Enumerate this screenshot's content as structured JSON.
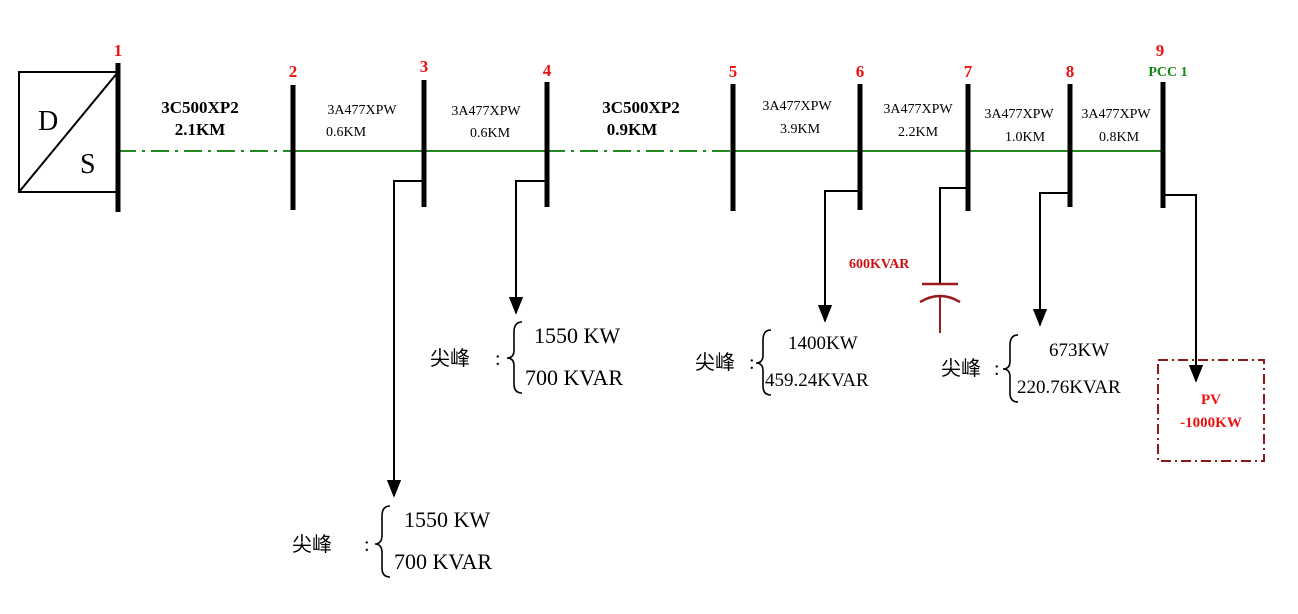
{
  "colors": {
    "bus_label": "#ee1111",
    "pcc_label": "#118811",
    "feeder_overhead": "#228822",
    "capacitor": "#9b1b1b",
    "pv_box": "#8b1a1a",
    "pv_text": "#ee1111",
    "line": "#000000"
  },
  "source": {
    "top_letter": "D",
    "bottom_letter": "S"
  },
  "buses": [
    {
      "number": "1"
    },
    {
      "number": "2"
    },
    {
      "number": "3"
    },
    {
      "number": "4"
    },
    {
      "number": "5"
    },
    {
      "number": "6"
    },
    {
      "number": "7"
    },
    {
      "number": "8"
    },
    {
      "number": "9",
      "tag": "PCC 1"
    }
  ],
  "segments": [
    {
      "from": "1",
      "to": "2",
      "conductor": "3C500XP2",
      "length": "2.1KM",
      "style": "bold"
    },
    {
      "from": "2",
      "to": "3",
      "conductor": "3A477XPW",
      "length": "0.6KM",
      "style": "small"
    },
    {
      "from": "3",
      "to": "4",
      "conductor": "3A477XPW",
      "length": "0.6KM",
      "style": "small"
    },
    {
      "from": "4",
      "to": "5",
      "conductor": "3C500XP2",
      "length": "0.9KM",
      "style": "bold"
    },
    {
      "from": "5",
      "to": "6",
      "conductor": "3A477XPW",
      "length": "3.9KM",
      "style": "small"
    },
    {
      "from": "6",
      "to": "7",
      "conductor": "3A477XPW",
      "length": "2.2KM",
      "style": "small"
    },
    {
      "from": "7",
      "to": "8",
      "conductor": "3A477XPW",
      "length": "1.0KM",
      "style": "small"
    },
    {
      "from": "8",
      "to": "9",
      "conductor": "3A477XPW",
      "length": "0.8KM",
      "style": "small"
    }
  ],
  "loads": [
    {
      "bus": "3",
      "prefix": "尖峰",
      "separator": ":",
      "p": "1550 KW",
      "q": "700 KVAR"
    },
    {
      "bus": "4",
      "prefix": "尖峰",
      "separator": ":",
      "p": "1550 KW",
      "q": "700 KVAR"
    },
    {
      "bus": "6",
      "prefix": "尖峰",
      "separator": ":",
      "p": "1400KW",
      "q": "459.24KVAR"
    },
    {
      "bus": "8",
      "prefix": "尖峰",
      "separator": ":",
      "p": "673KW",
      "q": "220.76KVAR"
    }
  ],
  "capacitor": {
    "bus": "7",
    "rating": "600KVAR"
  },
  "pv": {
    "bus": "9",
    "name": "PV",
    "power": "-1000KW"
  }
}
